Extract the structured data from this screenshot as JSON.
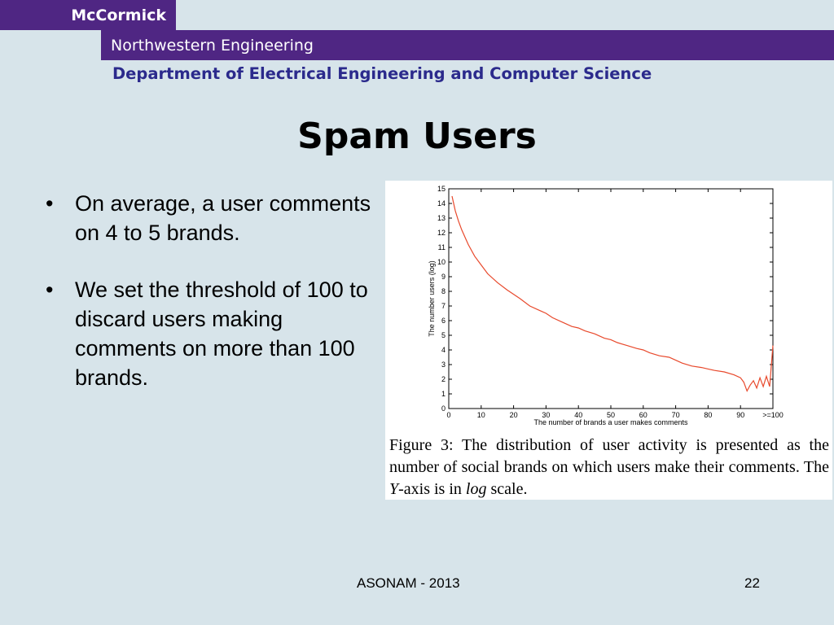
{
  "header": {
    "brand": "McCormick",
    "school": "Northwestern Engineering",
    "department": "Department of Electrical Engineering and Computer Science"
  },
  "slide": {
    "title": "Spam Users",
    "bullets": [
      "On average, a user comments on 4 to 5 brands.",
      "We set the threshold of 100 to discard users making comments on more than 100 brands."
    ]
  },
  "figure": {
    "caption_before": "Figure 3:  The distribution of user activity is presented as the number of social brands on which users make their comments. The ",
    "caption_y": "Y",
    "caption_mid": "-axis is in ",
    "caption_log": "log",
    "caption_after": " scale."
  },
  "chart_data": {
    "type": "line",
    "xlabel": "The number of brands a user makes comments",
    "ylabel": "The number users (log)",
    "xticks": [
      "0",
      "10",
      "20",
      "30",
      "40",
      "50",
      "60",
      "70",
      "80",
      "90",
      ">=100"
    ],
    "yticks": [
      "0",
      "1",
      "2",
      "3",
      "4",
      "5",
      "6",
      "7",
      "8",
      "9",
      "10",
      "11",
      "12",
      "13",
      "14",
      "15"
    ],
    "xlim": [
      0,
      100
    ],
    "ylim": [
      0,
      15
    ],
    "line_color": "#e8492c",
    "series": [
      {
        "x": [
          1,
          2,
          3,
          4,
          5,
          6,
          8,
          10,
          12,
          15,
          18,
          20,
          22,
          25,
          28,
          30,
          32,
          35,
          38,
          40,
          42,
          45,
          48,
          50,
          52,
          55,
          58,
          60,
          62,
          65,
          68,
          70,
          72,
          75,
          78,
          80,
          82,
          85,
          88,
          90,
          91,
          92,
          93,
          94,
          95,
          96,
          97,
          98,
          99,
          100
        ],
        "y": [
          14.5,
          13.5,
          12.8,
          12.2,
          11.7,
          11.2,
          10.4,
          9.8,
          9.2,
          8.6,
          8.1,
          7.8,
          7.5,
          7.0,
          6.7,
          6.5,
          6.2,
          5.9,
          5.6,
          5.5,
          5.3,
          5.1,
          4.8,
          4.7,
          4.5,
          4.3,
          4.1,
          4.0,
          3.8,
          3.6,
          3.5,
          3.3,
          3.1,
          2.9,
          2.8,
          2.7,
          2.6,
          2.5,
          2.3,
          2.1,
          1.8,
          1.2,
          1.6,
          1.9,
          1.4,
          2.1,
          1.5,
          2.2,
          1.5,
          4.3
        ]
      }
    ]
  },
  "footer": {
    "event": "ASONAM - 2013",
    "page": "22"
  }
}
